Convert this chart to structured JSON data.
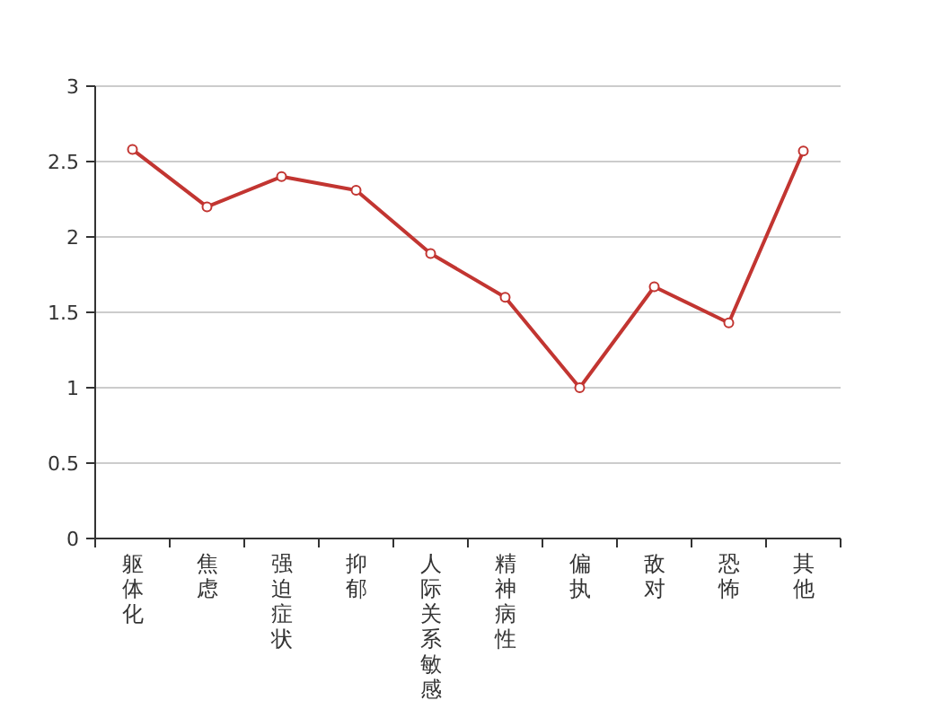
{
  "chart_data": {
    "type": "line",
    "categories": [
      "躯体化",
      "焦虑",
      "强迫症状",
      "抑郁",
      "人际关系敏感",
      "精神病性",
      "偏执",
      "敌对",
      "恐怖",
      "其他"
    ],
    "series": [
      {
        "color": "#c23531",
        "values": [
          2.58,
          2.2,
          2.4,
          2.31,
          1.89,
          1.6,
          1.0,
          1.67,
          1.43,
          2.57
        ]
      }
    ],
    "ylim": [
      0,
      3
    ],
    "yticks": [
      0,
      0.5,
      1,
      1.5,
      2,
      2.5,
      3
    ],
    "grid": "y",
    "marker": "circle"
  }
}
